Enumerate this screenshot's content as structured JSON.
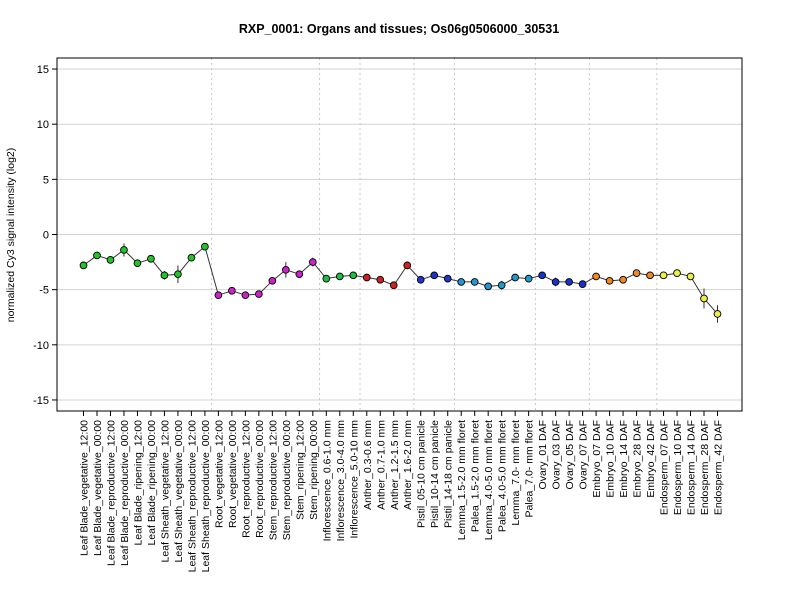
{
  "chart_data": {
    "type": "line",
    "title": "RXP_0001: Organs and tissues; Os06g0506000_30531",
    "xlabel": "",
    "ylabel": "normalized Cy3 signal intensity (log2)",
    "ylim": [
      -16,
      16
    ],
    "yticks": [
      -15,
      -10,
      -5,
      0,
      5,
      10,
      15
    ],
    "grid": true,
    "categories": [
      "Leaf Blade_vegetative_12:00",
      "Leaf Blade_vegetative_00:00",
      "Leaf Blade_reproductive_12:00",
      "Leaf Blade_reproductive_00:00",
      "Leaf Blade_ripening_12:00",
      "Leaf Blade_ripening_00:00",
      "Leaf Sheath_vegetative_12:00",
      "Leaf Sheath_vegetative_00:00",
      "Leaf Sheath_reproductive_12:00",
      "Leaf Sheath_reproductive_00:00",
      "Root_vegetative_12:00",
      "Root_vegetative_00:00",
      "Root_reproductive_12:00",
      "Root_reproductive_00:00",
      "Stem_reproductive_12:00",
      "Stem_reproductive_00:00",
      "Stem_ripening_12:00",
      "Stem_ripening_00:00",
      "Inflorescence_0.6-1.0 mm",
      "Inflorescence_3.0-4.0 mm",
      "Inflorescence_5.0-10 mm",
      "Anther_0.3-0.6 mm",
      "Anther_0.7-1.0 mm",
      "Anther_1.2-1.5 mm",
      "Anther_1.6-2.0 mm",
      "Pistil_05-10 cm panicle",
      "Pistil_10-14 cm panicle",
      "Pistil_14-18 cm panicle",
      "Lemma_1.5-2.0 mm floret",
      "Palea_1.5-2.0 mm floret",
      "Lemma_4.0-5.0 mm floret",
      "Palea_4.0-5.0 mm floret",
      "Lemma_7.0- mm floret",
      "Palea_7.0- mm floret",
      "Ovary_01 DAF",
      "Ovary_03 DAF",
      "Ovary_05 DAF",
      "Ovary_07 DAF",
      "Embryo_07 DAF",
      "Embryo_10 DAF",
      "Embryo_14 DAF",
      "Embryo_28 DAF",
      "Embryo_42 DAF",
      "Endosperm_07 DAF",
      "Endosperm_10 DAF",
      "Endosperm_14 DAF",
      "Endosperm_28 DAF",
      "Endosperm_42 DAF"
    ],
    "values": [
      -2.8,
      -1.9,
      -2.3,
      -1.4,
      -2.6,
      -2.2,
      -3.7,
      -3.6,
      -2.1,
      -1.1,
      -5.5,
      -5.1,
      -5.5,
      -5.4,
      -4.2,
      -3.2,
      -3.6,
      -2.5,
      -4.0,
      -3.8,
      -3.7,
      -3.9,
      -4.1,
      -4.6,
      -2.8,
      -4.1,
      -3.7,
      -4.0,
      -4.3,
      -4.3,
      -4.7,
      -4.6,
      -3.9,
      -4.0,
      -3.7,
      -4.3,
      -4.3,
      -4.5,
      -3.8,
      -4.2,
      -4.1,
      -3.5,
      -3.7,
      -3.7,
      -3.5,
      -3.8,
      -5.8,
      -7.2
    ],
    "errors": [
      0.3,
      0.2,
      0.3,
      0.6,
      0.2,
      0.3,
      0.4,
      0.8,
      0.3,
      0.3,
      0.3,
      0.2,
      0.2,
      0.2,
      0.3,
      0.7,
      0.3,
      0.4,
      0.2,
      0.2,
      0.2,
      0.2,
      0.2,
      0.2,
      0.2,
      0.2,
      0.2,
      0.2,
      0.2,
      0.3,
      0.2,
      0.4,
      0.2,
      0.2,
      0.3,
      0.4,
      0.2,
      0.2,
      0.2,
      0.3,
      0.2,
      0.2,
      0.3,
      0.2,
      0.3,
      0.3,
      0.9,
      0.8
    ],
    "point_colors": [
      "#22c42a",
      "#22c42a",
      "#22c42a",
      "#22c42a",
      "#22c42a",
      "#22c42a",
      "#22c42a",
      "#22c42a",
      "#22c42a",
      "#22c42a",
      "#cc22cc",
      "#cc22cc",
      "#cc22cc",
      "#cc22cc",
      "#cc22cc",
      "#cc22cc",
      "#cc22cc",
      "#cc22cc",
      "#22bb44",
      "#22bb44",
      "#22bb44",
      "#cc2222",
      "#cc2222",
      "#cc2222",
      "#cc2222",
      "#2233cc",
      "#2233cc",
      "#2233cc",
      "#2299cc",
      "#2299cc",
      "#2299cc",
      "#2299cc",
      "#2299cc",
      "#2299cc",
      "#1a33cc",
      "#1a33cc",
      "#1a33cc",
      "#1a33cc",
      "#ee8822",
      "#ee8822",
      "#ee8822",
      "#ee8822",
      "#ee8822",
      "#eeee44",
      "#eeee44",
      "#eeee44",
      "#eeee44",
      "#eeee44"
    ],
    "group_separators_after": [
      9,
      17,
      20,
      24,
      27,
      33,
      37,
      42
    ]
  }
}
